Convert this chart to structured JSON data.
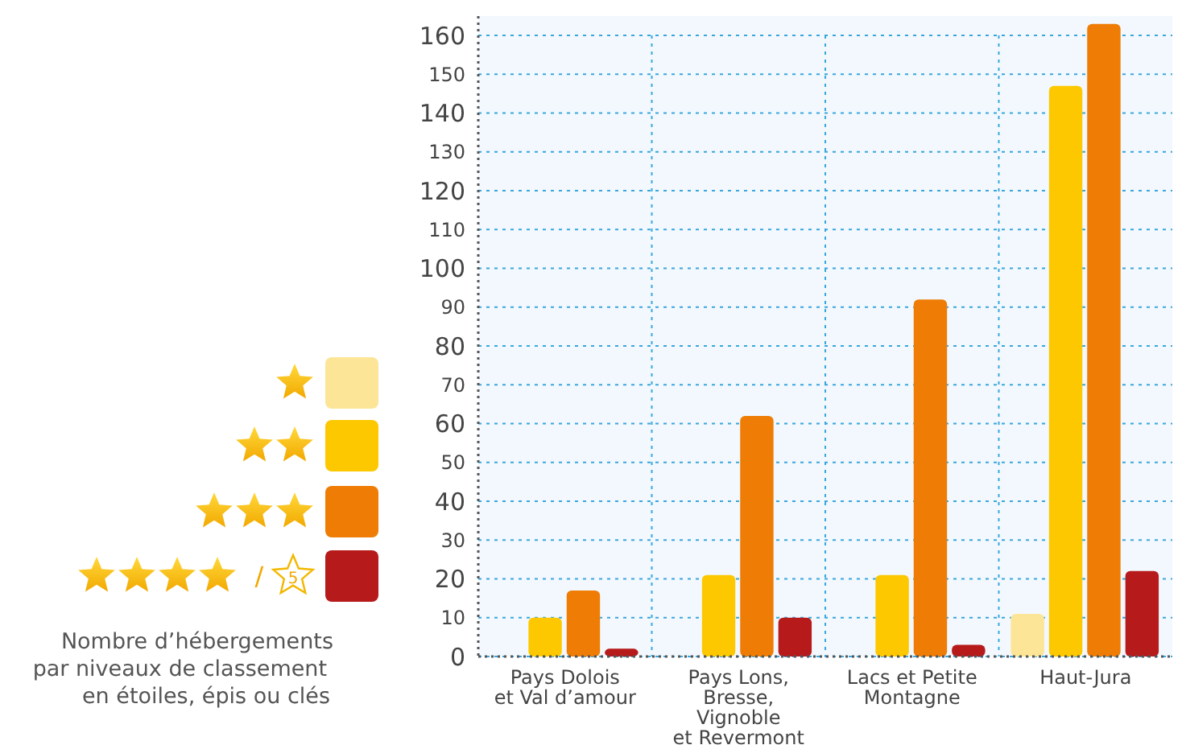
{
  "chart_data": {
    "type": "bar",
    "categories": [
      "Pays Dolois\net Val d’amour",
      "Pays Lons,\nBresse,\nVignoble\net Revermont",
      "Lacs et Petite\nMontagne",
      "Haut-Jura"
    ],
    "series": [
      {
        "color": "#fde597",
        "values": [
          0,
          0,
          0,
          11
        ]
      },
      {
        "color": "#fdc800",
        "values": [
          10,
          21,
          21,
          147
        ]
      },
      {
        "color": "#ee7c05",
        "values": [
          17,
          62,
          92,
          163
        ]
      },
      {
        "color": "#b71a1b",
        "values": [
          2,
          10,
          3,
          22
        ]
      }
    ],
    "ylim": [
      0,
      165
    ],
    "yticks": [
      0,
      10,
      20,
      30,
      40,
      50,
      60,
      70,
      80,
      90,
      100,
      110,
      120,
      130,
      140,
      150,
      160
    ],
    "grid": true,
    "annotations": [
      "Nombre d’hébergements\npar niveaux de classement\nen étoiles, épis ou clés",
      "/",
      "5"
    ]
  }
}
